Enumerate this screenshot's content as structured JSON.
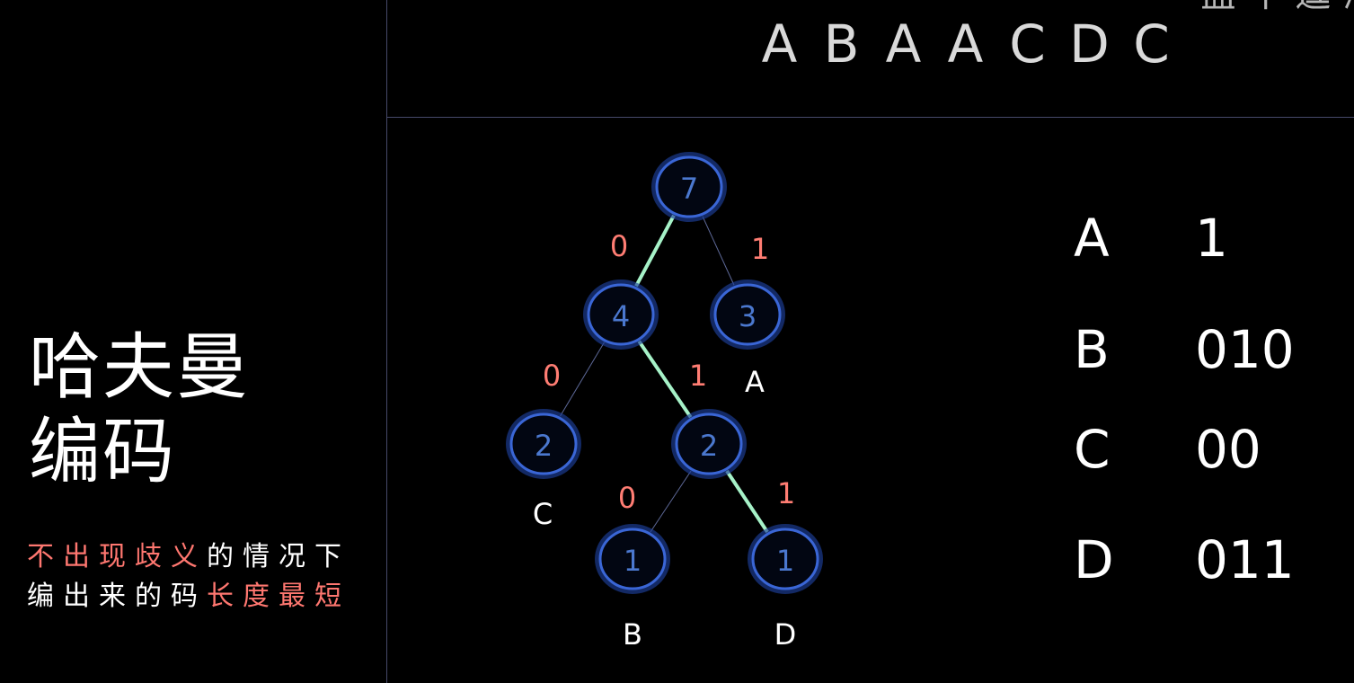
{
  "title": {
    "line1": "哈夫曼",
    "line2": "编码"
  },
  "subtitle": {
    "line1_red": "不出现歧义",
    "line1_white": "的情况下",
    "line2_white": "编出来的码",
    "line2_red": "长度最短"
  },
  "sequence": [
    "A",
    "B",
    "A",
    "A",
    "C",
    "D",
    "C"
  ],
  "corner_text": "盐 个 逗 海",
  "tree": {
    "nodes": [
      {
        "id": "root",
        "value": "7"
      },
      {
        "id": "n4",
        "value": "4"
      },
      {
        "id": "n3",
        "value": "3",
        "leaf_label": "A"
      },
      {
        "id": "n2c",
        "value": "2",
        "leaf_label": "C"
      },
      {
        "id": "n2",
        "value": "2"
      },
      {
        "id": "n1b",
        "value": "1",
        "leaf_label": "B"
      },
      {
        "id": "n1d",
        "value": "1",
        "leaf_label": "D"
      }
    ],
    "edges": [
      {
        "from": "root",
        "to": "n4",
        "label": "0",
        "highlighted": true
      },
      {
        "from": "root",
        "to": "n3",
        "label": "1",
        "highlighted": false
      },
      {
        "from": "n4",
        "to": "n2c",
        "label": "0",
        "highlighted": false
      },
      {
        "from": "n4",
        "to": "n2",
        "label": "1",
        "highlighted": true
      },
      {
        "from": "n2",
        "to": "n1b",
        "label": "0",
        "highlighted": false
      },
      {
        "from": "n2",
        "to": "n1d",
        "label": "1",
        "highlighted": true
      }
    ]
  },
  "codes": [
    {
      "symbol": "A",
      "code": "1"
    },
    {
      "symbol": "B",
      "code": "010"
    },
    {
      "symbol": "C",
      "code": "00"
    },
    {
      "symbol": "D",
      "code": "011"
    }
  ],
  "colors": {
    "background": "#000000",
    "accent_red": "#ff7770",
    "node_blue": "#3a66d6",
    "highlight_edge": "#a6f2c8"
  }
}
